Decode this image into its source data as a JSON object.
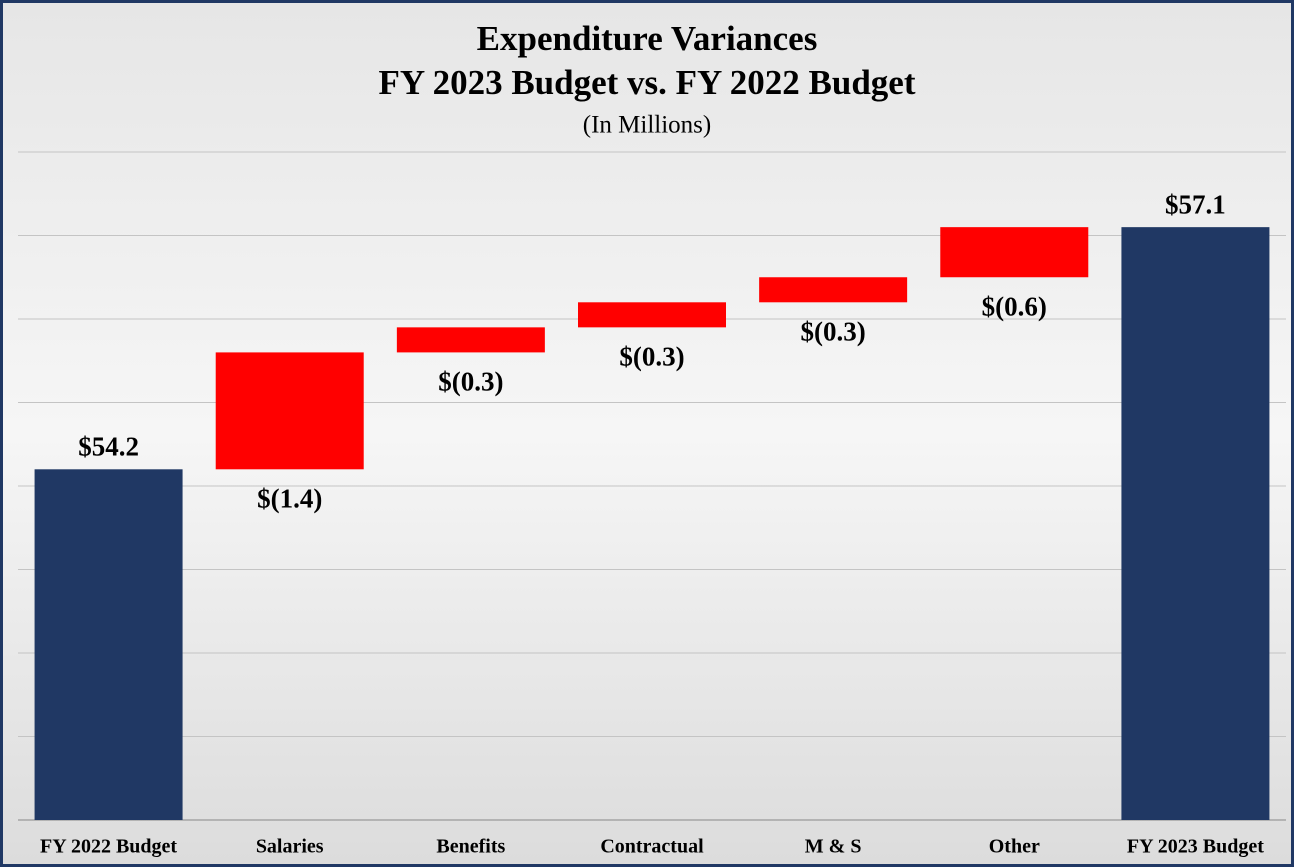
{
  "chart_data": {
    "type": "waterfall",
    "title": "Expenditure Variances",
    "subtitle": "FY 2023 Budget vs. FY 2022 Budget",
    "note": "(In Millions)",
    "categories": [
      "FY 2022 Budget",
      "Salaries",
      "Benefits",
      "Contractual",
      "M & S",
      "Other",
      "FY 2023 Budget"
    ],
    "values": [
      54.2,
      1.4,
      0.3,
      0.3,
      0.3,
      0.6,
      57.1
    ],
    "value_labels": [
      "$54.2",
      "$(1.4)",
      "$(0.3)",
      "$(0.3)",
      "$(0.3)",
      "$(0.6)",
      "$57.1"
    ],
    "measures": [
      "absolute",
      "relative",
      "relative",
      "relative",
      "relative",
      "relative",
      "total"
    ],
    "total_color": "#203864",
    "increase_color": "#ff0000",
    "ylim": [
      50,
      58
    ],
    "yticks": [
      50,
      51,
      52,
      53,
      54,
      55,
      56,
      57,
      58
    ],
    "grid": true
  }
}
